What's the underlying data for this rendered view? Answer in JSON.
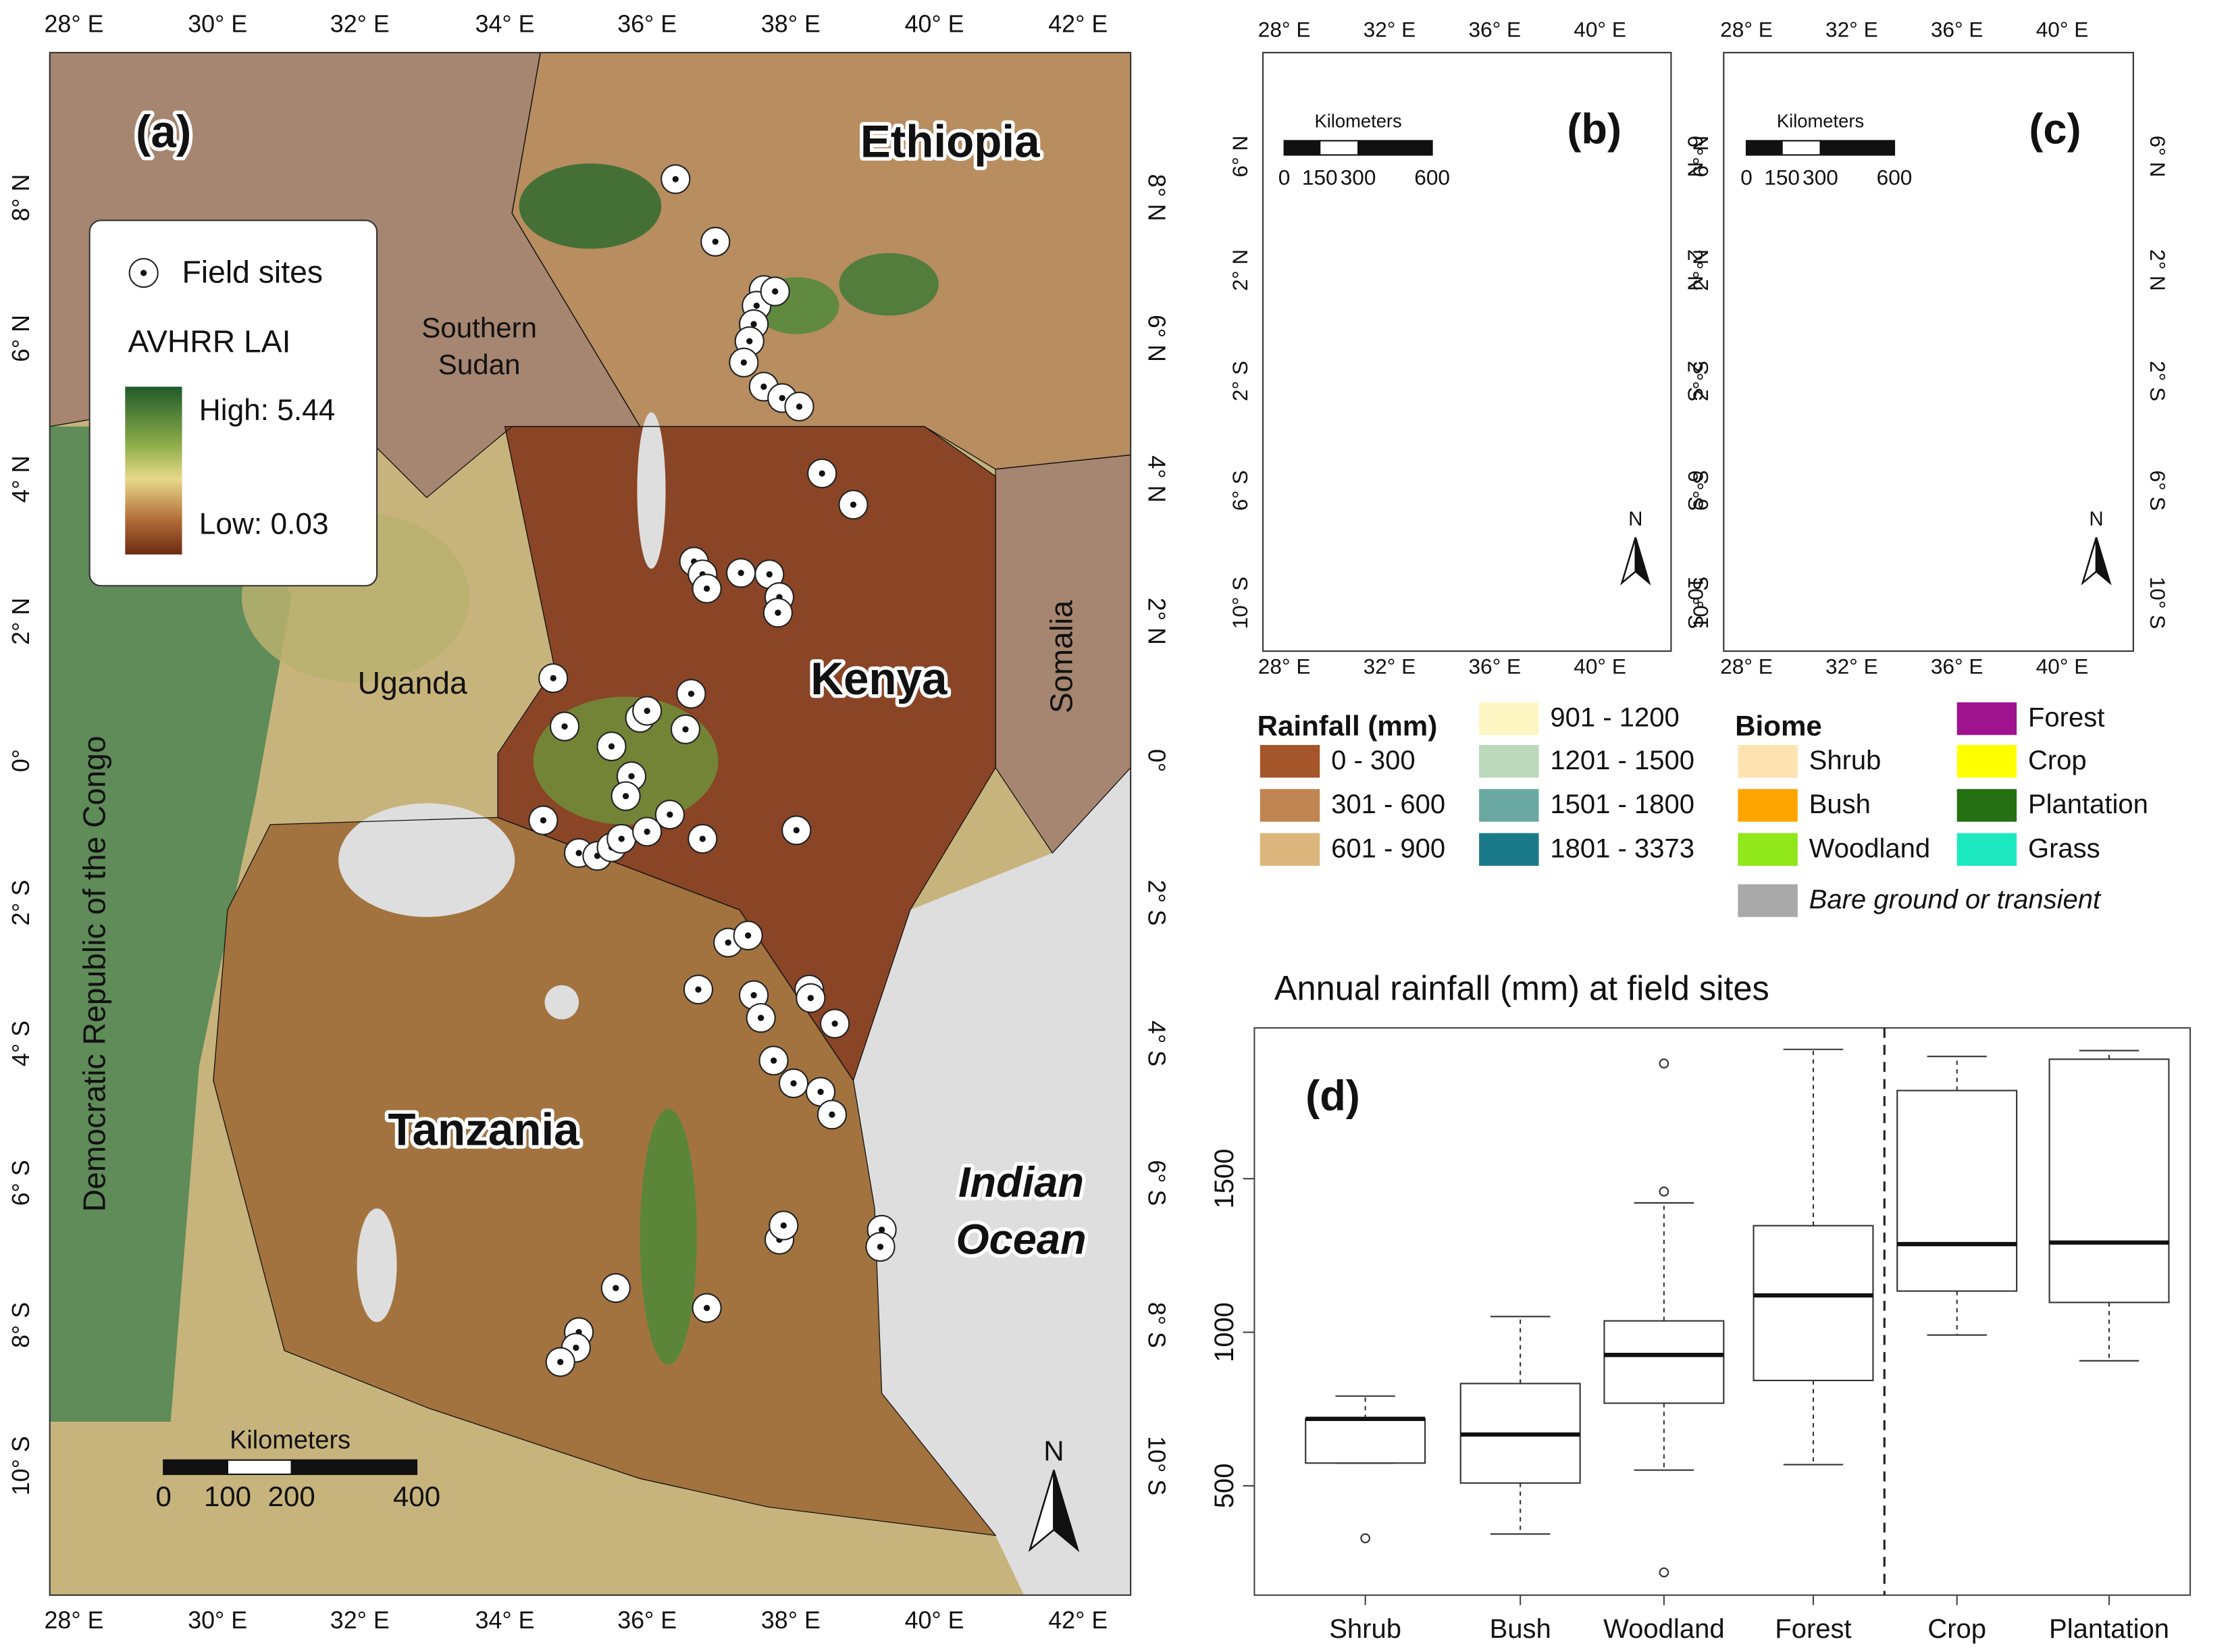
{
  "panel_a": {
    "label": "(a)",
    "lon_ticks": [
      "28° E",
      "30° E",
      "32° E",
      "34° E",
      "36° E",
      "38° E",
      "40° E",
      "42° E"
    ],
    "lat_ticks": [
      "8° N",
      "6° N",
      "4° N",
      "2° N",
      "0°",
      "2° S",
      "4° S",
      "6° S",
      "8° S",
      "10° S"
    ],
    "places": {
      "ethiopia": "Ethiopia",
      "southern_sudan": [
        "Southern",
        "Sudan"
      ],
      "uganda": "Uganda",
      "kenya": "Kenya",
      "somalia": "Somalia",
      "drc": "Democratic Republic of the Congo",
      "tanzania": "Tanzania",
      "ocean": [
        "Indian",
        "Ocean"
      ]
    },
    "legend": {
      "sites": "Field sites",
      "layer": "AVHRR LAI",
      "high": "High: 5.44",
      "low": "Low: 0.03"
    },
    "scale": {
      "title": "Kilometers",
      "labels": [
        "0",
        "100",
        "200",
        "400"
      ]
    },
    "north": "N"
  },
  "panel_b": {
    "label": "(b)",
    "lon_ticks": [
      "28° E",
      "32° E",
      "36° E",
      "40° E"
    ],
    "lat_ticks": [
      "6° N",
      "2° N",
      "2° S",
      "6° S",
      "10° S"
    ],
    "scale": {
      "title": "Kilometers",
      "labels": [
        "0",
        "150",
        "300",
        "600"
      ]
    },
    "north": "N"
  },
  "panel_c": {
    "label": "(c)",
    "lon_ticks": [
      "28° E",
      "32° E",
      "36° E",
      "40° E"
    ],
    "lat_ticks": [
      "6° N",
      "2° N",
      "2° S",
      "6° S",
      "10° S"
    ],
    "scale": {
      "title": "Kilometers",
      "labels": [
        "0",
        "150",
        "300",
        "600"
      ]
    },
    "north": "N"
  },
  "rainfall_legend": {
    "title": "Rainfall (mm)",
    "classes": [
      {
        "label": "0 - 300",
        "color": "#a5552a"
      },
      {
        "label": "301 - 600",
        "color": "#c08552"
      },
      {
        "label": "601 - 900",
        "color": "#dcb57c"
      },
      {
        "label": "901 - 1200",
        "color": "#fdf6c3"
      },
      {
        "label": "1201 - 1500",
        "color": "#bcd8bb"
      },
      {
        "label": "1501 - 1800",
        "color": "#6aa9a2"
      },
      {
        "label": "1801 - 3373",
        "color": "#1b7a8a"
      }
    ]
  },
  "biome_legend": {
    "title": "Biome",
    "classes": [
      {
        "label": "Shrub",
        "color": "#fde3b0"
      },
      {
        "label": "Bush",
        "color": "#ffa500"
      },
      {
        "label": "Woodland",
        "color": "#90e81a"
      },
      {
        "label": "Bare ground or transient",
        "color": "#a9a9a9"
      },
      {
        "label": "Forest",
        "color": "#a0138e"
      },
      {
        "label": "Crop",
        "color": "#ffff00"
      },
      {
        "label": "Plantation",
        "color": "#267014"
      },
      {
        "label": "Grass",
        "color": "#1de9c0"
      }
    ]
  },
  "chart_data": {
    "type": "box",
    "title": "Annual rainfall (mm) at field sites",
    "label": "(d)",
    "categories": [
      "Shrub",
      "Bush",
      "Woodland",
      "Forest",
      "Crop",
      "Plantation"
    ],
    "whisker_low": [
      574,
      343,
      551,
      569,
      991,
      907
    ],
    "q1": [
      574,
      509,
      769,
      843,
      1134,
      1097
    ],
    "median": [
      718,
      667,
      926,
      1120,
      1287,
      1292
    ],
    "q3": [
      718,
      833,
      1037,
      1347,
      1787,
      1889
    ],
    "whisker_high": [
      792,
      1051,
      1421,
      1921,
      1898,
      1917
    ],
    "outliers": [
      [
        329
      ],
      [],
      [
        1875,
        1458,
        218
      ],
      [],
      [],
      []
    ],
    "ylim": [
      144,
      1991
    ],
    "yticks": [
      500,
      1000,
      1500
    ]
  }
}
